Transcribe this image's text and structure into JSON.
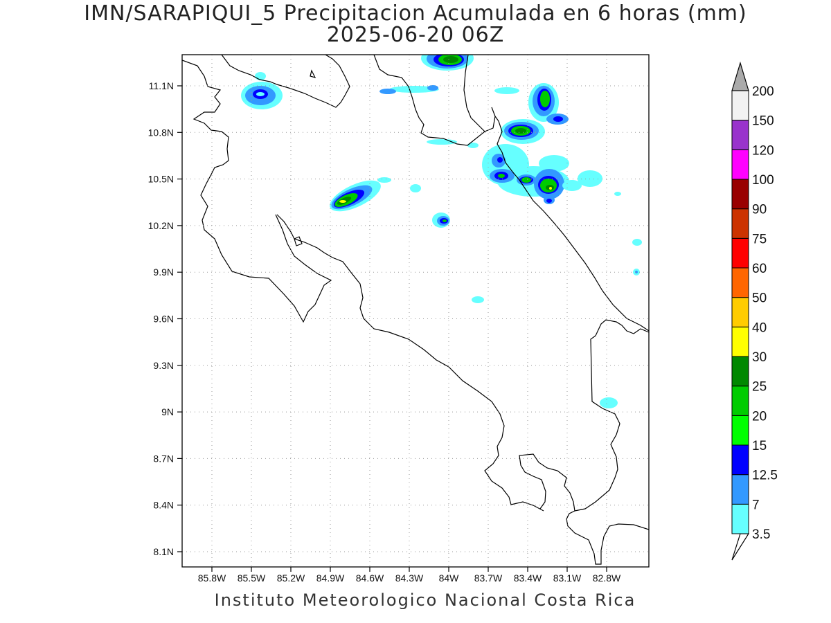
{
  "header": {
    "title": "IMN/SARAPIQUI_5 Precipitacion Acumulada en 6 horas (mm)",
    "valid_time": "2025-06-20 06Z"
  },
  "footer": {
    "credit": "Instituto Meteorologico Nacional Costa Rica"
  },
  "map": {
    "lon_ticks": [
      "85.8W",
      "85.5W",
      "85.2W",
      "84.9W",
      "84.6W",
      "84.3W",
      "84W",
      "83.7W",
      "83.4W",
      "83.1W",
      "82.8W"
    ],
    "lat_ticks": [
      "11.1N",
      "10.8N",
      "10.5N",
      "10.2N",
      "9.9N",
      "9.6N",
      "9.3N",
      "9N",
      "8.7N",
      "8.4N",
      "8.1N"
    ],
    "grid": true
  },
  "colorbar": {
    "labels": [
      "3.5",
      "7",
      "12.5",
      "15",
      "20",
      "25",
      "30",
      "40",
      "50",
      "60",
      "75",
      "90",
      "100",
      "120",
      "150",
      "200"
    ],
    "colors": [
      "#ffffff",
      "#66ffff",
      "#3399ff",
      "#0000ff",
      "#00ff00",
      "#00cc00",
      "#008800",
      "#ffff00",
      "#ffcc00",
      "#ff6600",
      "#ff0000",
      "#cc3300",
      "#990000",
      "#ff00ff",
      "#9933cc",
      "#f2f2f2",
      "#aaaaaa"
    ]
  },
  "icons": {
    "upper_arrow": "colorbar-max-arrow",
    "lower_arrow": "colorbar-min-arrow"
  }
}
